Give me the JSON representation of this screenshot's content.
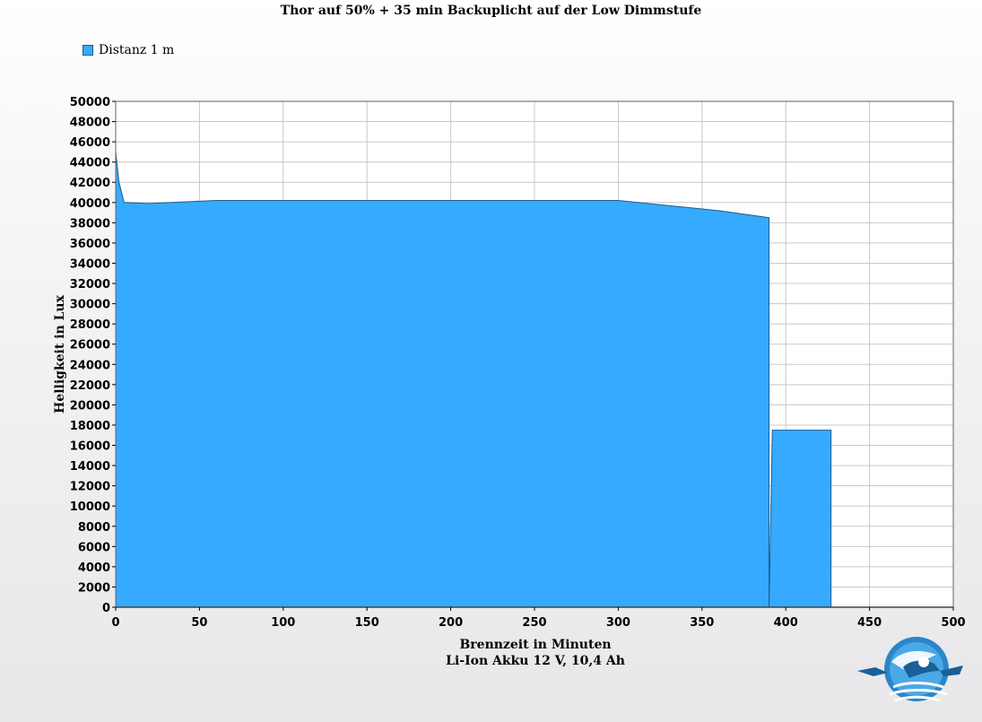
{
  "chart_data": {
    "type": "area",
    "title": "Thor auf 50% + 35 min Backuplicht auf der Low Dimmstufe",
    "xlabel": "Brennzeit in Minuten",
    "xlabel_sub": "Li-Ion Akku 12 V, 10,4 Ah",
    "ylabel": "Helligkeit in Lux",
    "xlim": [
      0,
      500
    ],
    "ylim": [
      0,
      50000
    ],
    "x_ticks": [
      0,
      50,
      100,
      150,
      200,
      250,
      300,
      350,
      400,
      450,
      500
    ],
    "y_ticks": [
      0,
      2000,
      4000,
      6000,
      8000,
      10000,
      12000,
      14000,
      16000,
      18000,
      20000,
      22000,
      24000,
      26000,
      28000,
      30000,
      32000,
      34000,
      36000,
      38000,
      40000,
      42000,
      44000,
      46000,
      48000,
      50000
    ],
    "grid": true,
    "legend_position": "top-left",
    "series": [
      {
        "name": "Distanz 1 m",
        "color": "#35aafe",
        "points": [
          [
            0,
            45000
          ],
          [
            2,
            42000
          ],
          [
            5,
            40000
          ],
          [
            20,
            39900
          ],
          [
            60,
            40200
          ],
          [
            150,
            40200
          ],
          [
            300,
            40200
          ],
          [
            360,
            39200
          ],
          [
            390,
            38500
          ],
          [
            390,
            0
          ],
          [
            392,
            17500
          ],
          [
            427,
            17500
          ],
          [
            427,
            0
          ]
        ]
      }
    ]
  }
}
